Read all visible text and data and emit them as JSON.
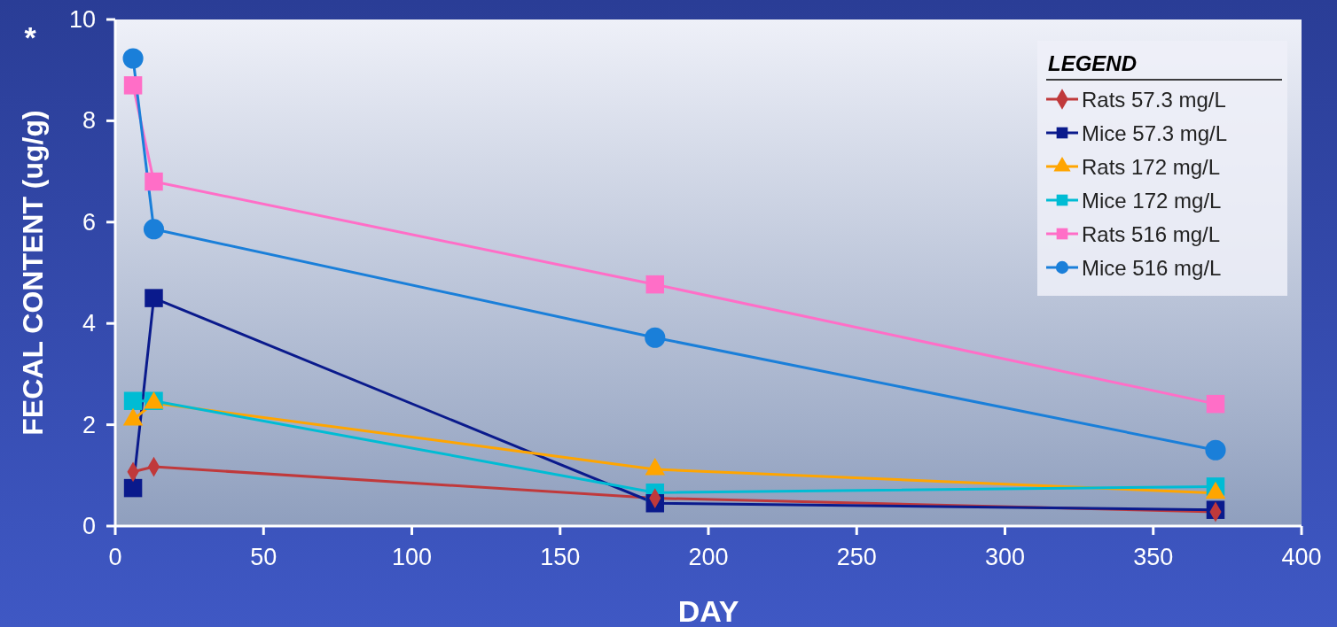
{
  "chart_data": {
    "type": "line",
    "xlabel": "DAY",
    "ylabel": "FECAL CONTENT (ug/g)",
    "legend_title": "LEGEND",
    "legend": "top right",
    "annotations": [
      "*"
    ],
    "xlim": [
      0,
      400
    ],
    "xticks": [
      0,
      50,
      100,
      150,
      200,
      250,
      300,
      350,
      400
    ],
    "ylim": [
      0,
      10
    ],
    "yticks": [
      0,
      2,
      4,
      6,
      8,
      10
    ],
    "grid": false,
    "line_style": "solid",
    "series": [
      {
        "name": "Rats 57.3 mg/L",
        "color": "#c0393b",
        "marker": "diamond",
        "x": [
          6,
          13,
          182,
          371
        ],
        "values": [
          1.07,
          1.17,
          0.55,
          0.28
        ]
      },
      {
        "name": "Mice 57.3 mg/L",
        "color": "#0a1a8c",
        "marker": "square",
        "x": [
          6,
          13,
          182,
          371
        ],
        "values": [
          0.75,
          4.5,
          0.45,
          0.32
        ]
      },
      {
        "name": "Rats 172 mg/L",
        "color": "#ffa500",
        "marker": "triangle",
        "x": [
          6,
          13,
          182,
          371
        ],
        "values": [
          2.1,
          2.43,
          1.12,
          0.65
        ]
      },
      {
        "name": "Mice 172 mg/L",
        "color": "#00bcd4",
        "marker": "square",
        "x": [
          6,
          13,
          182,
          371
        ],
        "values": [
          2.47,
          2.47,
          0.66,
          0.78
        ]
      },
      {
        "name": "Rats 516 mg/L",
        "color": "#ff6ec7",
        "marker": "square",
        "x": [
          6,
          13,
          182,
          371
        ],
        "values": [
          8.7,
          6.8,
          4.77,
          2.41
        ]
      },
      {
        "name": "Mice 516 mg/L",
        "color": "#1a7fd9",
        "marker": "circle",
        "x": [
          6,
          13,
          182,
          371
        ],
        "values": [
          9.23,
          5.86,
          3.72,
          1.5
        ]
      }
    ]
  }
}
